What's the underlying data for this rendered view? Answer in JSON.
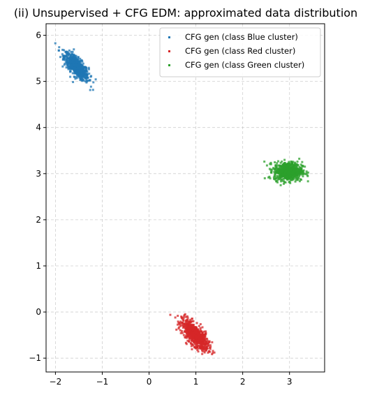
{
  "chart_data": {
    "type": "scatter",
    "title": "(ii) Unsupervised + CFG EDM: approximated data distribution",
    "xlabel": "",
    "ylabel": "",
    "xlim": [
      -2.2,
      3.75
    ],
    "ylim": [
      -1.3,
      6.25
    ],
    "xticks": [
      -2,
      -1,
      0,
      1,
      2,
      3
    ],
    "yticks": [
      -1,
      0,
      1,
      2,
      3,
      4,
      5,
      6
    ],
    "xtick_labels": [
      "−2",
      "−1",
      "0",
      "1",
      "2",
      "3"
    ],
    "ytick_labels": [
      "−1",
      "0",
      "1",
      "2",
      "3",
      "4",
      "5",
      "6"
    ],
    "grid": true,
    "legend_position": "top-right",
    "series": [
      {
        "name": "CFG gen (class Blue cluster)",
        "color": "#1f77b4",
        "center": [
          -1.55,
          5.32
        ],
        "spread": [
          0.13,
          0.15
        ],
        "correlation": -0.75,
        "count": 700
      },
      {
        "name": "CFG gen (class Red cluster)",
        "color": "#d62728",
        "center": [
          0.98,
          -0.5
        ],
        "spread": [
          0.14,
          0.16
        ],
        "correlation": -0.7,
        "count": 700
      },
      {
        "name": "CFG gen (class Green cluster)",
        "color": "#2ca02c",
        "center": [
          2.97,
          3.05
        ],
        "spread": [
          0.15,
          0.1
        ],
        "correlation": 0.0,
        "count": 700
      }
    ]
  }
}
